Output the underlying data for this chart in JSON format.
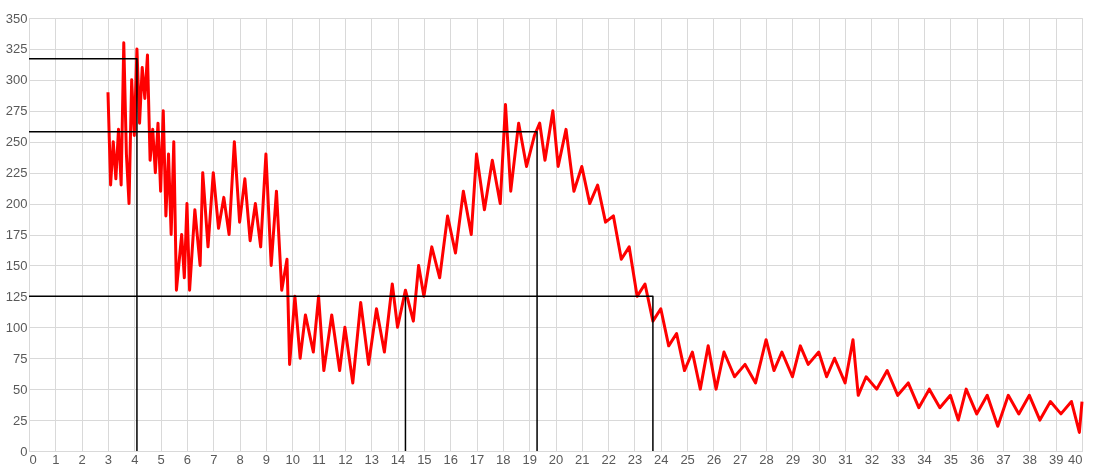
{
  "chart_data": {
    "type": "line",
    "xlim": [
      0,
      40
    ],
    "ylim": [
      0,
      350
    ],
    "xticks": [
      0,
      1,
      2,
      3,
      4,
      5,
      6,
      7,
      8,
      9,
      10,
      11,
      12,
      13,
      14,
      15,
      16,
      17,
      18,
      19,
      20,
      21,
      22,
      23,
      24,
      25,
      26,
      27,
      28,
      29,
      30,
      31,
      32,
      33,
      34,
      35,
      36,
      37,
      38,
      39,
      40
    ],
    "yticks": [
      0,
      25,
      50,
      75,
      100,
      125,
      150,
      175,
      200,
      225,
      250,
      275,
      300,
      325,
      350
    ],
    "grid": true,
    "legend": false,
    "marker": "none",
    "line_style": "solid",
    "series": [
      {
        "color": "#ff0000",
        "x": [
          3.0,
          3.1,
          3.2,
          3.3,
          3.4,
          3.5,
          3.6,
          3.7,
          3.8,
          3.9,
          4.0,
          4.1,
          4.2,
          4.3,
          4.4,
          4.5,
          4.6,
          4.7,
          4.8,
          4.9,
          5.0,
          5.1,
          5.2,
          5.3,
          5.4,
          5.5,
          5.6,
          5.8,
          5.9,
          6.0,
          6.1,
          6.3,
          6.5,
          6.6,
          6.8,
          7.0,
          7.2,
          7.4,
          7.6,
          7.8,
          8.0,
          8.2,
          8.4,
          8.6,
          8.8,
          9.0,
          9.2,
          9.4,
          9.6,
          9.8,
          9.9,
          10.1,
          10.3,
          10.5,
          10.8,
          11.0,
          11.2,
          11.5,
          11.8,
          12.0,
          12.3,
          12.6,
          12.9,
          13.2,
          13.5,
          13.8,
          14.0,
          14.3,
          14.6,
          14.8,
          15.0,
          15.3,
          15.6,
          15.9,
          16.2,
          16.5,
          16.8,
          17.0,
          17.3,
          17.6,
          17.9,
          18.1,
          18.3,
          18.6,
          18.9,
          19.2,
          19.4,
          19.6,
          19.9,
          20.1,
          20.4,
          20.7,
          21.0,
          21.3,
          21.6,
          21.9,
          22.2,
          22.5,
          22.8,
          23.1,
          23.4,
          23.7,
          24.0,
          24.3,
          24.6,
          24.9,
          25.2,
          25.5,
          25.8,
          26.1,
          26.4,
          26.8,
          27.2,
          27.6,
          28.0,
          28.3,
          28.6,
          29.0,
          29.3,
          29.6,
          30.0,
          30.3,
          30.6,
          31.0,
          31.3,
          31.5,
          31.8,
          32.2,
          32.6,
          33.0,
          33.4,
          33.8,
          34.2,
          34.6,
          35.0,
          35.3,
          35.6,
          36.0,
          36.4,
          36.8,
          37.2,
          37.6,
          38.0,
          38.4,
          38.8,
          39.2,
          39.6,
          39.9,
          40.0
        ],
        "values": [
          290,
          215,
          250,
          220,
          260,
          215,
          330,
          240,
          200,
          300,
          255,
          325,
          265,
          310,
          285,
          320,
          235,
          260,
          225,
          265,
          210,
          275,
          190,
          240,
          175,
          250,
          130,
          175,
          140,
          200,
          130,
          195,
          150,
          225,
          165,
          225,
          180,
          205,
          175,
          250,
          185,
          220,
          170,
          200,
          165,
          240,
          150,
          210,
          130,
          155,
          70,
          125,
          75,
          110,
          80,
          125,
          65,
          110,
          65,
          100,
          55,
          120,
          70,
          115,
          80,
          135,
          100,
          130,
          105,
          150,
          125,
          165,
          140,
          190,
          160,
          210,
          175,
          240,
          195,
          235,
          200,
          280,
          210,
          265,
          230,
          255,
          265,
          235,
          275,
          230,
          260,
          210,
          230,
          200,
          215,
          185,
          190,
          155,
          165,
          125,
          135,
          105,
          115,
          85,
          95,
          65,
          80,
          50,
          85,
          50,
          80,
          60,
          70,
          55,
          90,
          65,
          80,
          60,
          85,
          70,
          80,
          60,
          75,
          55,
          90,
          45,
          60,
          50,
          65,
          45,
          55,
          35,
          50,
          35,
          45,
          25,
          50,
          30,
          45,
          20,
          45,
          30,
          45,
          25,
          40,
          30,
          40,
          15,
          40
        ]
      },
      {
        "color": "#000000",
        "x": [
          0,
          4.1,
          4.1
        ],
        "values": [
          317,
          317,
          0
        ]
      },
      {
        "color": "#000000",
        "x": [
          0,
          19.3,
          19.3
        ],
        "values": [
          258,
          258,
          0
        ]
      },
      {
        "color": "#000000",
        "x": [
          0,
          23.7,
          23.7
        ],
        "values": [
          125,
          125,
          0
        ]
      },
      {
        "color": "#000000",
        "x": [
          14.3,
          14.3
        ],
        "values": [
          125,
          0
        ]
      }
    ]
  }
}
